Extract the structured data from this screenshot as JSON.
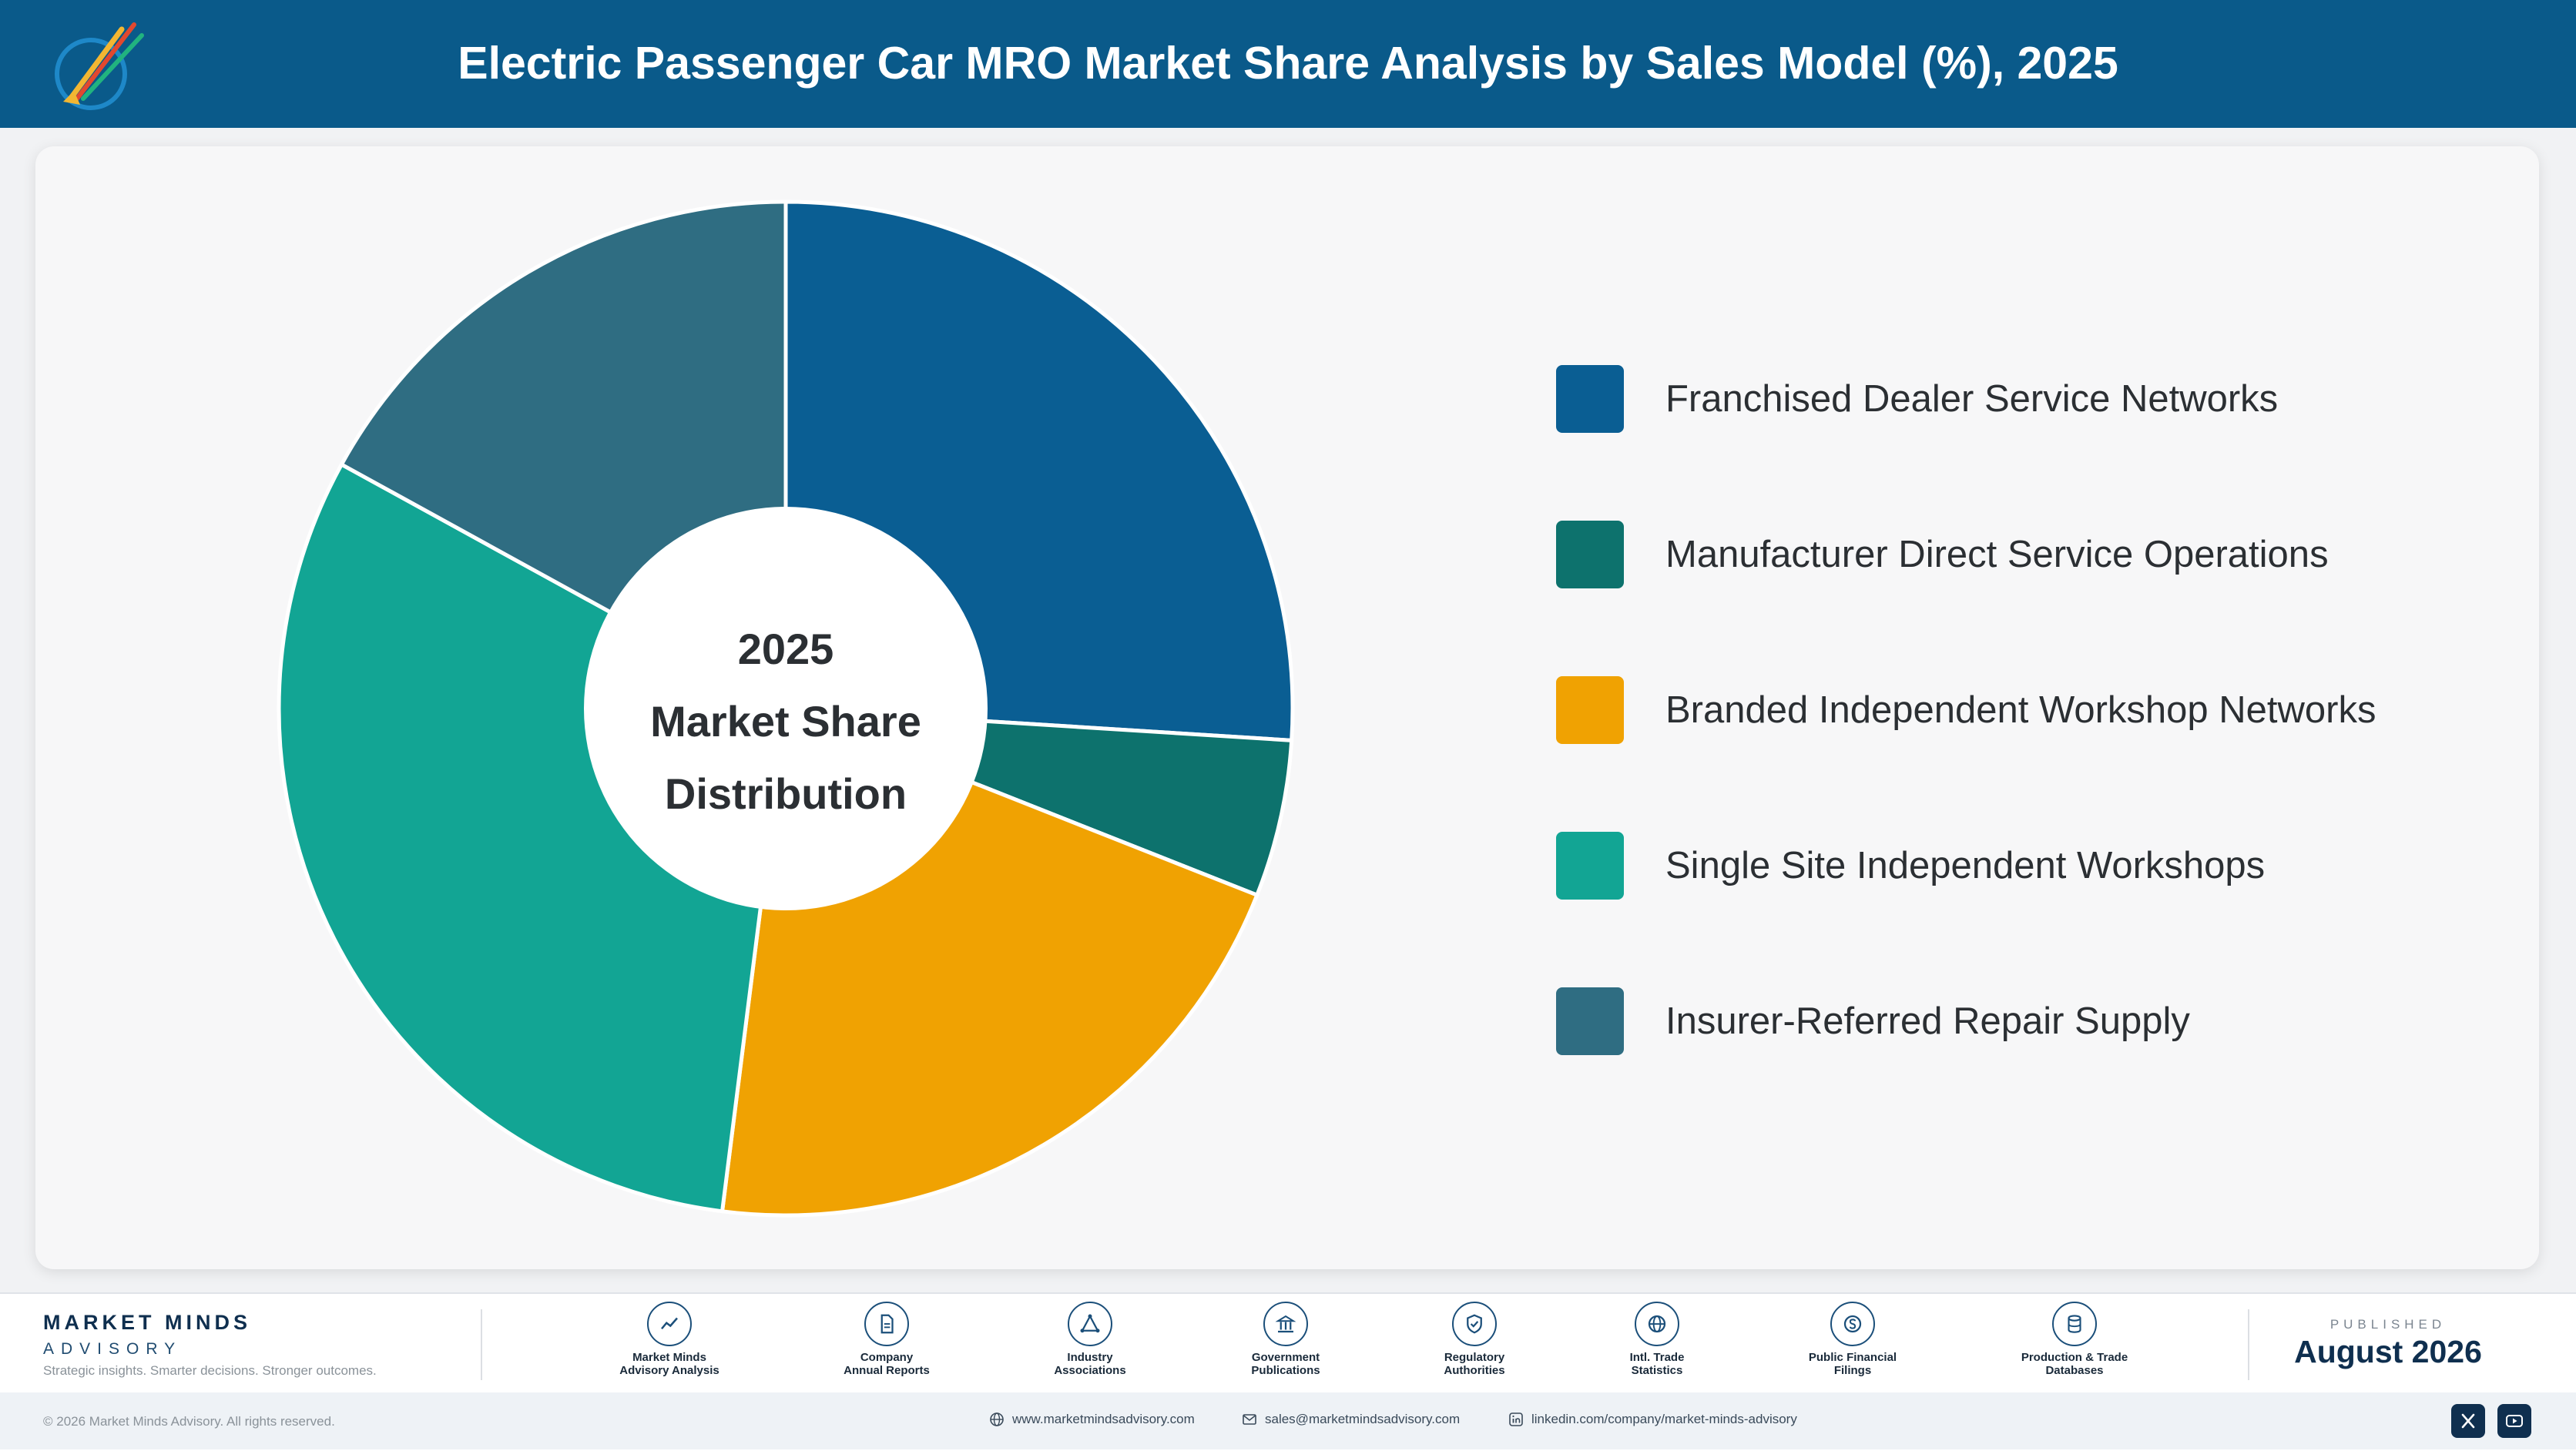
{
  "header": {
    "title": "Electric Passenger Car MRO Market Share Analysis by Sales Model (%), 2025",
    "logo_icon": "rocket-logo-icon"
  },
  "chart_data": {
    "type": "pie",
    "style": "donut",
    "center_text": [
      "2025",
      "Market Share",
      "Distribution"
    ],
    "categories": [
      "Franchised Dealer Service Networks",
      "Manufacturer Direct Service Operations",
      "Branded Independent Workshop Networks",
      "Single Site Independent Workshops",
      "Insurer-Referred Repair Supply"
    ],
    "values": [
      26,
      5,
      21,
      31,
      17
    ],
    "colors": [
      "#0a5e93",
      "#0d726d",
      "#f0a202",
      "#12a594",
      "#2f6d82"
    ],
    "legend_position": "right"
  },
  "footer": {
    "brand": {
      "name": "MARKET MINDS",
      "sub": "ADVISORY",
      "tagline": "Strategic insights. Smarter decisions. Stronger outcomes."
    },
    "sources": [
      {
        "label_lines": [
          "Market Minds",
          "Advisory Analysis"
        ],
        "icon": "trend-chart-icon"
      },
      {
        "label_lines": [
          "Company",
          "Annual Reports"
        ],
        "icon": "document-icon"
      },
      {
        "label_lines": [
          "Industry",
          "Associations"
        ],
        "icon": "network-triangle-icon"
      },
      {
        "label_lines": [
          "Government",
          "Publications"
        ],
        "icon": "government-building-icon"
      },
      {
        "label_lines": [
          "Regulatory",
          "Authorities"
        ],
        "icon": "shield-check-icon"
      },
      {
        "label_lines": [
          "Intl. Trade",
          "Statistics"
        ],
        "icon": "globe-icon"
      },
      {
        "label_lines": [
          "Public Financial",
          "Filings"
        ],
        "icon": "currency-coin-icon"
      },
      {
        "label_lines": [
          "Production & Trade",
          "Databases"
        ],
        "icon": "database-icon"
      }
    ],
    "published_caption": "PUBLISHED",
    "published_date": "August 2026"
  },
  "bottom_bar": {
    "copyright": "© 2026 Market Minds Advisory. All rights reserved.",
    "website": "www.marketmindsadvisory.com",
    "email": "sales@marketmindsadvisory.com",
    "linkedin": "linkedin.com/company/market-minds-advisory",
    "social_icons": [
      "x-icon",
      "youtube-icon"
    ]
  }
}
